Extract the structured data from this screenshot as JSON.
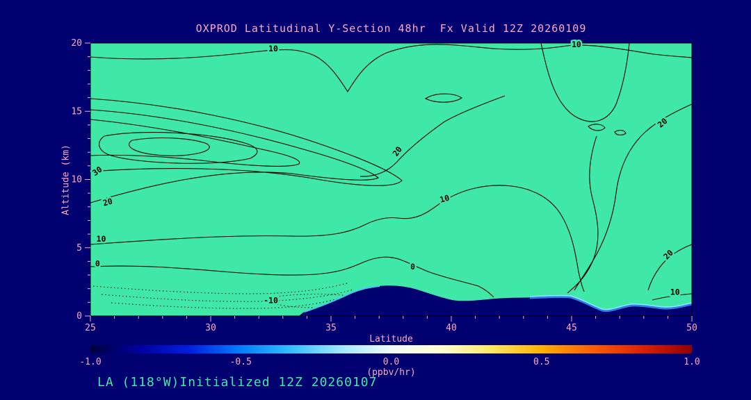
{
  "title": "OXPROD Latitudinal Y-Section 48hr  Fx Valid 12Z 20260109",
  "annotation": "LA (118°W)Initialized 12Z 20260107",
  "colors": {
    "background": "#000070",
    "plot_fill": "#40E8A8",
    "contour_line": "#000000",
    "label_text": "#FFA8C8",
    "annotation_text": "#40E8A8",
    "terrain": "#000070",
    "terrain_edge_light": "#8FE8FF",
    "terrain_edge_blue": "#2E7DE8"
  },
  "chart_data": {
    "type": "heatmap",
    "subtype": "contour-cross-section",
    "title": "OXPROD Latitudinal Y-Section 48hr  Fx Valid 12Z 20260109",
    "xlabel": "Latitude",
    "ylabel": "Altitude (km)",
    "x_range": [
      25,
      50
    ],
    "y_range": [
      0,
      20
    ],
    "x_ticks": [
      25,
      30,
      35,
      40,
      45,
      50
    ],
    "y_ticks": [
      0,
      5,
      10,
      15,
      20
    ],
    "grid": false,
    "contour_levels": [
      -10,
      0,
      10,
      20,
      30
    ],
    "negative_contour_style": "dotted",
    "contour_labels": [
      {
        "text": "10",
        "lat": 32.6,
        "alt": 19.4,
        "rot": 0
      },
      {
        "text": "10",
        "lat": 45.2,
        "alt": 19.7,
        "rot": 0
      },
      {
        "text": "30",
        "lat": 25.35,
        "alt": 10.45,
        "rot": -35
      },
      {
        "text": "20",
        "lat": 25.75,
        "alt": 8.15,
        "rot": -15
      },
      {
        "text": "10",
        "lat": 25.45,
        "alt": 5.45,
        "rot": 0
      },
      {
        "text": "0",
        "lat": 25.3,
        "alt": 3.65,
        "rot": 0
      },
      {
        "text": "20",
        "lat": 37.85,
        "alt": 11.95,
        "rot": -55
      },
      {
        "text": "10",
        "lat": 39.75,
        "alt": 8.4,
        "rot": -15
      },
      {
        "text": "20",
        "lat": 48.85,
        "alt": 14.0,
        "rot": -40
      },
      {
        "text": "20",
        "lat": 49.1,
        "alt": 4.35,
        "rot": -45
      },
      {
        "text": "10",
        "lat": 49.3,
        "alt": 1.55,
        "rot": 0
      },
      {
        "text": "0",
        "lat": 38.4,
        "alt": 3.4,
        "rot": 0
      },
      {
        "text": "-10",
        "lat": 32.5,
        "alt": 0.95,
        "rot": 0
      }
    ],
    "colorbar": {
      "min": -1.0,
      "max": 1.0,
      "tick_labels": [
        "-1.0",
        "-0.5",
        "0.0",
        "0.5",
        "1.0"
      ],
      "label": "(ppbv/hr)",
      "colors": [
        "#00003C",
        "#0000A0",
        "#0020E0",
        "#0080FF",
        "#30C0FF",
        "#A0E8FF",
        "#F0FAFA",
        "#FFFFD0",
        "#FFE860",
        "#FFB000",
        "#FF6000",
        "#E02000",
        "#900000"
      ]
    }
  }
}
